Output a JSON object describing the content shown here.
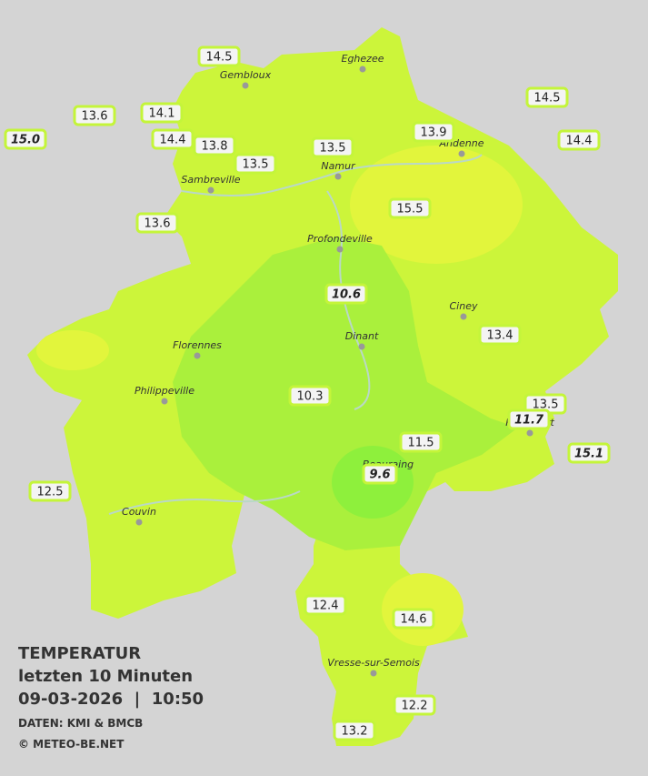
{
  "legend": {
    "title": "TEMPERATUR",
    "period": "letzten 10 Minuten",
    "datetime": "09-03-2026  |  10:50",
    "source": "DATEN: KMI & BMCB",
    "copyright": "© METEO-BE.NET"
  },
  "cities": [
    "Eghezee",
    "Gembloux",
    "Andenne",
    "Namur",
    "Sambreville",
    "Profondeville",
    "Ciney",
    "Florennes",
    "Dinant",
    "Philippeville",
    "Rochefort",
    "Beauraing",
    "Couvin",
    "Vresse-sur-Semois"
  ],
  "stations": [
    {
      "label": "14.5",
      "italic": false
    },
    {
      "label": "13.6",
      "italic": false
    },
    {
      "label": "15.0",
      "italic": true
    },
    {
      "label": "14.1",
      "italic": false
    },
    {
      "label": "14.4",
      "italic": false
    },
    {
      "label": "13.8",
      "italic": false
    },
    {
      "label": "13.5",
      "italic": false
    },
    {
      "label": "13.5",
      "italic": false
    },
    {
      "label": "13.9",
      "italic": false
    },
    {
      "label": "14.5",
      "italic": false
    },
    {
      "label": "14.4",
      "italic": false
    },
    {
      "label": "15.5",
      "italic": false
    },
    {
      "label": "13.6",
      "italic": false
    },
    {
      "label": "10.6",
      "italic": true
    },
    {
      "label": "13.4",
      "italic": false
    },
    {
      "label": "10.3",
      "italic": false
    },
    {
      "label": "13.5",
      "italic": false
    },
    {
      "label": "11.7",
      "italic": true
    },
    {
      "label": "11.5",
      "italic": false
    },
    {
      "label": "15.1",
      "italic": true
    },
    {
      "label": "9.6",
      "italic": true
    },
    {
      "label": "12.5",
      "italic": false
    },
    {
      "label": "12.4",
      "italic": false
    },
    {
      "label": "14.6",
      "italic": false
    },
    {
      "label": "12.2",
      "italic": false
    },
    {
      "label": "13.2",
      "italic": false
    }
  ]
}
